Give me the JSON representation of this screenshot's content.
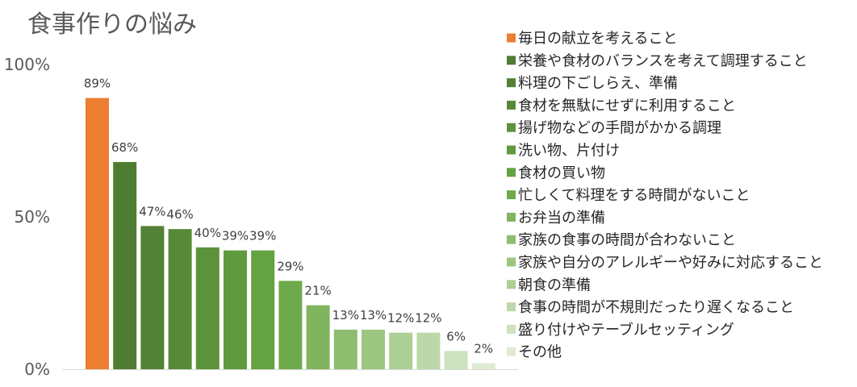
{
  "chart_data": {
    "type": "bar",
    "title": "食事作りの悩み",
    "xlabel": "",
    "ylabel": "",
    "ylim": [
      0,
      100
    ],
    "y_ticks": [
      {
        "value": 0,
        "label": "0%"
      },
      {
        "value": 50,
        "label": "50%"
      },
      {
        "value": 100,
        "label": "100%"
      }
    ],
    "grid": false,
    "legend_position": "right",
    "categories": [
      "毎日の献立を考えること",
      "栄養や食材のバランスを考えて調理すること",
      "料理の下ごしらえ、準備",
      "食材を無駄にせずに利用すること",
      "揚げ物などの手間がかかる調理",
      "洗い物、片付け",
      "食材の買い物",
      "忙しくて料理をする時間がないこと",
      "お弁当の準備",
      "家族の食事の時間が合わないこと",
      "家族や自分のアレルギーや好みに対応すること",
      "朝食の準備",
      "食事の時間が不規則だったり遅くなること",
      "盛り付けやテーブルセッティング",
      "その他"
    ],
    "values": [
      89,
      68,
      47,
      46,
      40,
      39,
      39,
      29,
      21,
      13,
      13,
      12,
      12,
      6,
      2
    ],
    "value_labels": [
      "89%",
      "68%",
      "47%",
      "46%",
      "40%",
      "39%",
      "39%",
      "29%",
      "21%",
      "13%",
      "13%",
      "12%",
      "12%",
      "6%",
      "2%"
    ],
    "colors": [
      "#ED7D31",
      "#4E7D31",
      "#538135",
      "#578A38",
      "#5C923B",
      "#609A3E",
      "#65A242",
      "#6EAA4C",
      "#80B45E",
      "#8EBD6F",
      "#9DC582",
      "#ADCF95",
      "#BCD8A8",
      "#CDE2BE",
      "#DDEBD3"
    ]
  }
}
